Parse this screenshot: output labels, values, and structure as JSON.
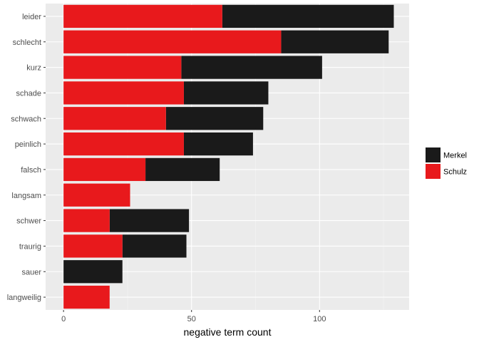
{
  "chart_data": {
    "type": "bar",
    "orientation": "horizontal",
    "stacked": true,
    "title": "",
    "xlabel": "negative term count",
    "ylabel": "",
    "xlim": [
      -7,
      135
    ],
    "x_ticks": [
      0,
      50,
      100
    ],
    "grid": true,
    "legend_position": "right",
    "categories": [
      "leider",
      "schlecht",
      "kurz",
      "schade",
      "schwach",
      "peinlich",
      "falsch",
      "langsam",
      "schwer",
      "traurig",
      "sauer",
      "langweilig"
    ],
    "series": [
      {
        "name": "Schulz",
        "color": "#e8191c",
        "values": [
          62,
          85,
          46,
          47,
          40,
          47,
          32,
          26,
          18,
          23,
          0,
          18
        ]
      },
      {
        "name": "Merkel",
        "color": "#1a1a1a",
        "values": [
          67,
          42,
          55,
          33,
          38,
          27,
          29,
          0,
          31,
          25,
          23,
          0
        ]
      }
    ],
    "legend_order": [
      "Merkel",
      "Schulz"
    ]
  }
}
